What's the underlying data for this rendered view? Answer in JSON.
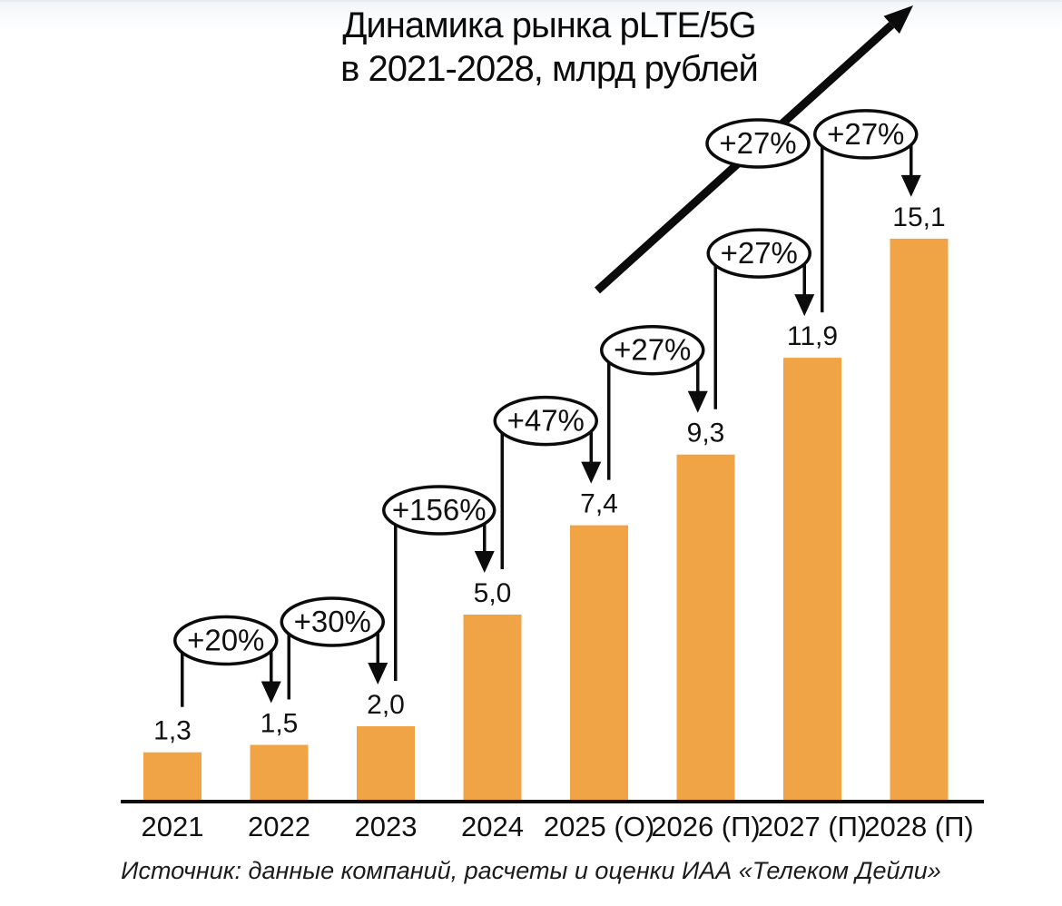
{
  "title": {
    "line1": "Динамика рынка pLTE/5G",
    "line2": "в 2021-2028, млрд рублей"
  },
  "source": "Источник: данные компаний, расчеты и оценки ИАА «Телеком Дейли»",
  "chart_data": {
    "type": "bar",
    "title": "Динамика рынка pLTE/5G в 2021-2028, млрд рублей",
    "categories": [
      "2021",
      "2022",
      "2023",
      "2024",
      "2025 (О)",
      "2026 (П)",
      "2027 (П)",
      "2028 (П)"
    ],
    "values": [
      1.3,
      1.5,
      2.0,
      5.0,
      7.4,
      9.3,
      11.9,
      15.1
    ],
    "value_labels": [
      "1,3",
      "1,5",
      "2,0",
      "5,0",
      "7,4",
      "9,3",
      "11,9",
      "15,1"
    ],
    "growth_annotations": [
      {
        "label": "+20%",
        "from_index": 0,
        "to_index": 1
      },
      {
        "label": "+30%",
        "from_index": 1,
        "to_index": 2
      },
      {
        "label": "+156%",
        "from_index": 2,
        "to_index": 3
      },
      {
        "label": "+47%",
        "from_index": 3,
        "to_index": 4
      },
      {
        "label": "+27%",
        "from_index": 4,
        "to_index": 5
      },
      {
        "label": "+27%",
        "from_index": 5,
        "to_index": 6
      },
      {
        "label": "+27%",
        "from_index": 6,
        "to_index": 7
      }
    ],
    "trend_arrow": {
      "label": "+27%"
    },
    "bar_color": "#F0A445",
    "line_color": "#0b0b0b",
    "text_color": "#111111",
    "badge_fill": "#ffffff",
    "xlabel": "",
    "ylabel": "млрд рублей",
    "ylim": [
      0,
      16
    ],
    "grid": false,
    "legend": false
  }
}
